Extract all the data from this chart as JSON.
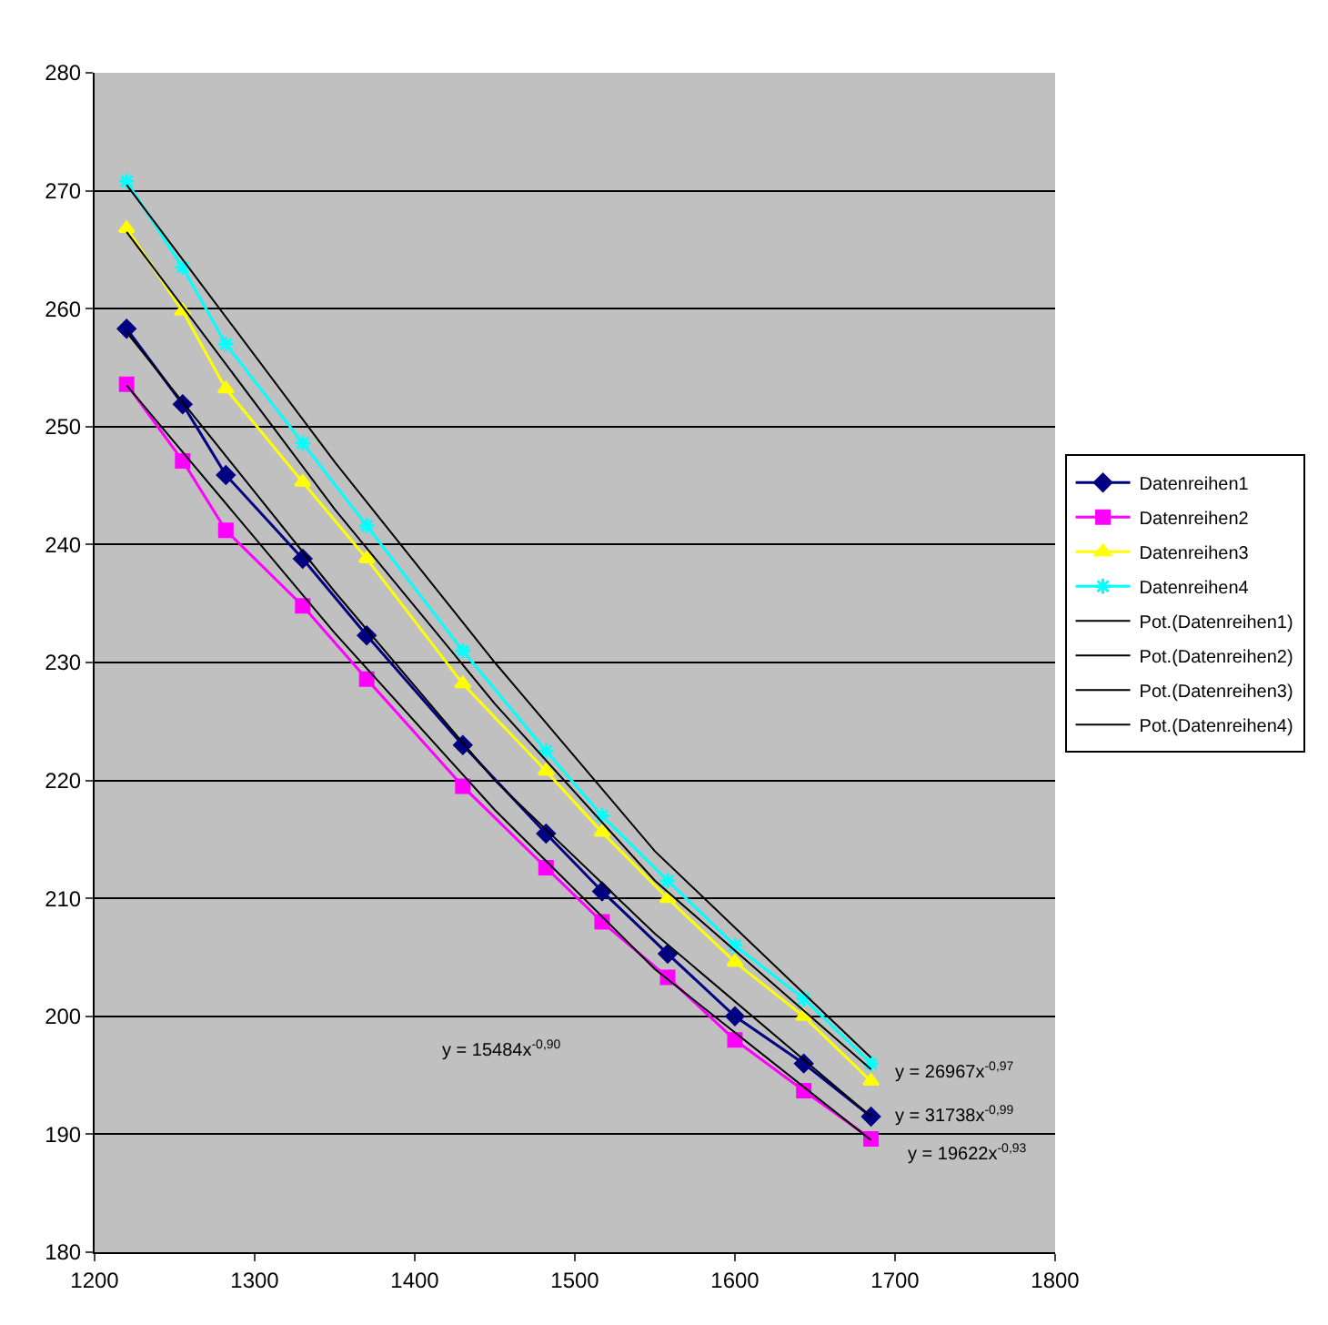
{
  "chart_data": {
    "type": "line",
    "x": [
      1220,
      1255,
      1282,
      1330,
      1370,
      1430,
      1482,
      1517,
      1558,
      1600,
      1643,
      1685
    ],
    "series": [
      {
        "name": "Datenreihen1",
        "color": "#000080",
        "marker": "diamond",
        "values": [
          258.3,
          251.9,
          245.9,
          238.8,
          232.3,
          223.0,
          215.5,
          210.6,
          205.3,
          200.0,
          196.0,
          191.5
        ]
      },
      {
        "name": "Datenreihen2",
        "color": "#ff00ff",
        "marker": "square",
        "values": [
          253.6,
          247.1,
          241.2,
          234.8,
          228.6,
          219.5,
          212.6,
          208.0,
          203.3,
          198.0,
          193.7,
          189.6
        ]
      },
      {
        "name": "Datenreihen3",
        "color": "#ffff00",
        "marker": "triangle",
        "values": [
          266.8,
          259.8,
          253.2,
          245.3,
          238.8,
          228.2,
          220.8,
          215.6,
          210.0,
          204.6,
          200.0,
          194.5
        ]
      },
      {
        "name": "Datenreihen4",
        "color": "#00ffff",
        "marker": "cross",
        "values": [
          270.8,
          263.5,
          257.0,
          248.6,
          241.6,
          231.0,
          222.5,
          217.0,
          211.5,
          206.0,
          201.5,
          196.0
        ]
      },
      {
        "name": "Pot.(Datenreihen1)",
        "color": "#000000",
        "marker": "none",
        "x": [
          1220,
          1350,
          1450,
          1550,
          1685
        ],
        "values": [
          258.0,
          236.0,
          220.0,
          207.0,
          191.5
        ]
      },
      {
        "name": "Pot.(Datenreihen2)",
        "color": "#000000",
        "marker": "none",
        "x": [
          1220,
          1350,
          1450,
          1550,
          1685
        ],
        "values": [
          253.5,
          232.5,
          217.5,
          204.0,
          189.5
        ]
      },
      {
        "name": "Pot.(Datenreihen3)",
        "color": "#000000",
        "marker": "none",
        "x": [
          1220,
          1350,
          1450,
          1550,
          1685
        ],
        "values": [
          266.5,
          243.0,
          226.5,
          211.5,
          195.5
        ]
      },
      {
        "name": "Pot.(Datenreihen4)",
        "color": "#000000",
        "marker": "none",
        "x": [
          1220,
          1350,
          1450,
          1550,
          1685
        ],
        "values": [
          270.5,
          247.0,
          230.0,
          214.0,
          196.5
        ]
      }
    ],
    "xlim": [
      1200,
      1800
    ],
    "xticks": [
      1200,
      1300,
      1400,
      1500,
      1600,
      1700,
      1800
    ],
    "ylim": [
      180,
      280
    ],
    "yticks": [
      180,
      190,
      200,
      210,
      220,
      230,
      240,
      250,
      260,
      270,
      280
    ],
    "grid": "y",
    "legend": "right",
    "annotations": [
      "y = 15484x$^{-0,90}$",
      "y = 26967x$^{-0,97}$",
      "y = 31738x$^{-0,99}$",
      "y = 19622x$^{-0,93}$"
    ]
  }
}
